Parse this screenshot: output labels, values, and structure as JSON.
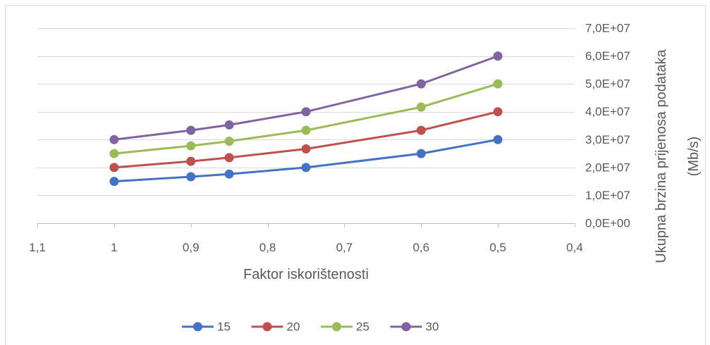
{
  "chart_data": {
    "type": "line",
    "x": [
      1,
      0.9,
      0.85,
      0.75,
      0.6,
      0.5
    ],
    "series": [
      {
        "name": "15",
        "color": "#4472C4",
        "values": [
          15000000,
          16670000,
          17650000,
          20000000,
          25000000,
          30000000
        ]
      },
      {
        "name": "20",
        "color": "#C0504D",
        "values": [
          20000000,
          22220000,
          23530000,
          26670000,
          33330000,
          40000000
        ]
      },
      {
        "name": "25",
        "color": "#9BBB59",
        "values": [
          25000000,
          27780000,
          29410000,
          33330000,
          41670000,
          50000000
        ]
      },
      {
        "name": "30",
        "color": "#8064A2",
        "values": [
          30000000,
          33330000,
          35290000,
          40000000,
          50000000,
          60000000
        ]
      }
    ],
    "xlabel": "Faktor iskorištenosti",
    "ylabel": [
      "Ukupna brzina prijenosa podataka",
      "(Mb/s)"
    ],
    "xlim": [
      1.1,
      0.4
    ],
    "x_reversed": true,
    "ylim": [
      0,
      70000000
    ],
    "x_ticks": [
      1.1,
      1,
      0.9,
      0.8,
      0.7,
      0.6,
      0.5,
      0.4
    ],
    "x_tick_labels": [
      "1,1",
      "1",
      "0,9",
      "0,8",
      "0,7",
      "0,6",
      "0,5",
      "0,4"
    ],
    "y_ticks": [
      0,
      10000000,
      20000000,
      30000000,
      40000000,
      50000000,
      60000000,
      70000000
    ],
    "y_tick_labels": [
      "0,0E+00",
      "1,0E+07",
      "2,0E+07",
      "3,0E+07",
      "4,0E+07",
      "5,0E+07",
      "6,0E+07",
      "7,0E+07"
    ],
    "y_axis_side": "right",
    "grid": true,
    "legend": "bottom",
    "colors": {
      "gridline": "#D9D9D9",
      "axis": "#BFBFBF",
      "text": "#595959",
      "border": "#D9D9D9"
    }
  }
}
